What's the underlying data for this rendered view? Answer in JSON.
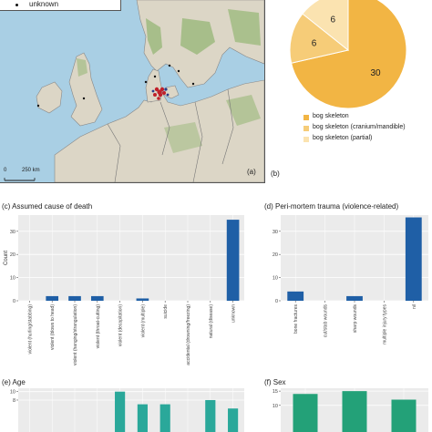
{
  "map": {
    "legend_label": "unknown",
    "scale_zero": "0",
    "scale_distance": "250 km",
    "panel_label": "(a)",
    "colors": {
      "sea": "#a9cfe4",
      "land": "#dcd6c6",
      "forest": "#9ab87a",
      "border": "#777777",
      "site_red": "#c0202a",
      "site_blue": "#2a3c8a",
      "site_black": "#111111"
    }
  },
  "panel_b_label": "(b)",
  "chart_data": [
    {
      "id": "b",
      "type": "pie",
      "slices": [
        {
          "name": "bog skeleton",
          "value": 30,
          "label": "30",
          "color": "#f2b544"
        },
        {
          "name": "bog skeleton (cranium/mandible)",
          "value": 6,
          "label": "6",
          "color": "#f6cc78"
        },
        {
          "name": "bog skeleton (partial)",
          "value": 6,
          "label": "6",
          "color": "#fbe3b0"
        }
      ]
    },
    {
      "id": "c",
      "type": "bar",
      "title": "(c)  Assumed cause of death",
      "ylabel": "Count",
      "ylim": [
        0,
        37
      ],
      "yticks": [
        0,
        10,
        20,
        30
      ],
      "color": "#1f5fa6",
      "categories": [
        "violent (hurling/stabbing)",
        "violent (blows to head)",
        "violent (hanging/strangulation)",
        "violent (throat-cutting)",
        "violent (decapitation)",
        "violent (multiple)",
        "suicide",
        "accidental (drowning/freezing)",
        "natural (disease)",
        "unknown"
      ],
      "values": [
        0,
        2,
        2,
        2,
        0,
        1,
        0,
        0,
        0,
        35
      ]
    },
    {
      "id": "d",
      "type": "bar",
      "title": "(d)  Peri-mortem trauma (violence-related)",
      "ylabel": "",
      "ylim": [
        0,
        37
      ],
      "yticks": [
        0,
        10,
        20,
        30
      ],
      "color": "#1f5fa6",
      "categories": [
        "bone fractures",
        "cut/stab wounds",
        "sharp wounds",
        "multiple injury types",
        "nil"
      ],
      "values": [
        4,
        0,
        2,
        0,
        36
      ]
    },
    {
      "id": "e",
      "type": "bar",
      "title": "(e)  Age",
      "ylabel": "",
      "ylim": [
        0,
        10.8
      ],
      "yticks": [
        8,
        10
      ],
      "color": "#2aa89a",
      "categories": [
        "",
        "",
        "",
        "",
        "",
        "",
        "",
        "",
        "",
        ""
      ],
      "values": [
        0,
        0,
        0,
        0,
        10,
        7,
        7,
        0,
        8,
        6
      ]
    },
    {
      "id": "f",
      "type": "bar",
      "title": "(f)  Sex",
      "ylabel": "",
      "ylim": [
        0,
        16
      ],
      "yticks": [
        10,
        15
      ],
      "color": "#23a178",
      "categories": [
        "",
        "",
        ""
      ],
      "values": [
        14,
        15,
        12
      ]
    }
  ]
}
